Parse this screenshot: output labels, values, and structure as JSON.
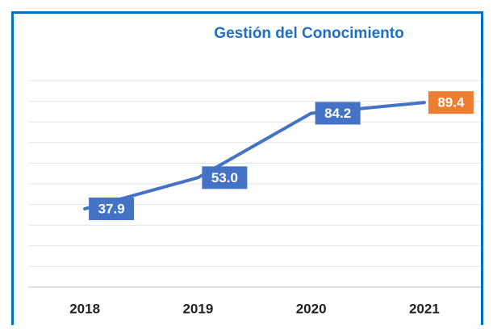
{
  "chart_data": {
    "type": "line",
    "title": "Gestión del Conocimiento",
    "categories": [
      "2018",
      "2019",
      "2020",
      "2021"
    ],
    "values": [
      37.9,
      53.0,
      84.2,
      89.4
    ],
    "value_labels": [
      "37.9",
      "53.0",
      "84.2",
      "89.4"
    ],
    "color": "#4472c4",
    "label_colors": [
      "#4472c4",
      "#4472c4",
      "#4472c4",
      "#ed7d31"
    ],
    "ylim": [
      0,
      100
    ],
    "yticks": [
      0,
      10,
      20,
      30,
      40,
      50,
      60,
      70,
      80,
      90,
      100
    ],
    "grid": true
  }
}
